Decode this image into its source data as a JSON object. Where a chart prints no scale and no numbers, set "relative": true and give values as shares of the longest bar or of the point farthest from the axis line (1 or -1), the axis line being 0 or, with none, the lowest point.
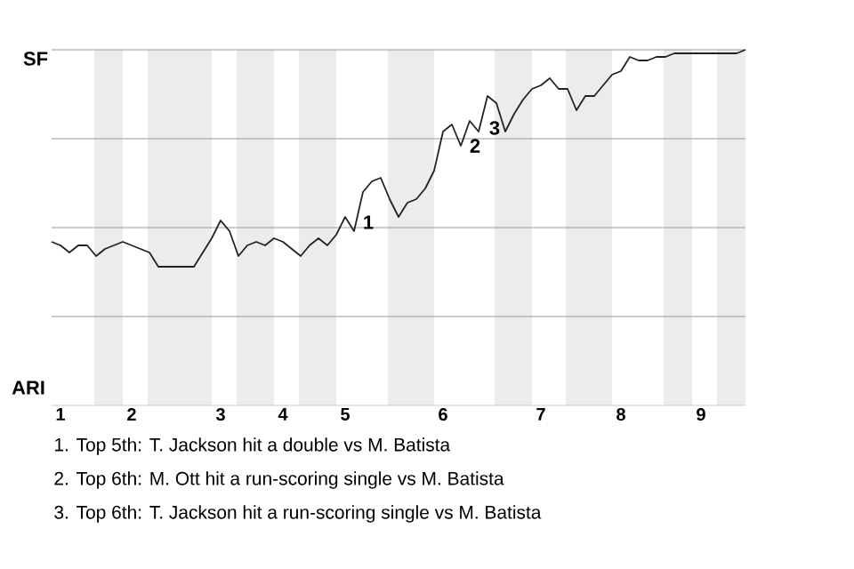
{
  "chart_data": {
    "type": "line",
    "relative": true,
    "categories": [
      null,
      "1",
      null,
      null,
      null,
      null,
      null,
      null,
      null,
      "2",
      null,
      null,
      null,
      null,
      null,
      null,
      null,
      null,
      null,
      "3",
      null,
      null,
      null,
      null,
      null,
      null,
      "4",
      null,
      null,
      null,
      null,
      null,
      null,
      "5",
      null,
      null,
      null,
      null,
      null,
      null,
      null,
      null,
      null,
      null,
      "6",
      null,
      null,
      null,
      null,
      null,
      null,
      null,
      null,
      null,
      null,
      "7",
      null,
      null,
      null,
      null,
      null,
      null,
      null,
      null,
      "8",
      null,
      null,
      null,
      null,
      null,
      null,
      null,
      null,
      "9",
      null,
      null,
      null,
      null,
      null
    ],
    "series": [
      {
        "color": "#222222",
        "values": [
          0.46,
          0.45,
          0.43,
          0.45,
          0.45,
          0.42,
          0.44,
          0.45,
          0.46,
          0.45,
          0.44,
          0.43,
          0.39,
          0.39,
          0.39,
          0.39,
          0.39,
          0.43,
          0.47,
          0.52,
          0.49,
          0.42,
          0.45,
          0.46,
          0.45,
          0.47,
          0.46,
          0.44,
          0.42,
          0.45,
          0.47,
          0.45,
          0.48,
          0.53,
          0.49,
          0.6,
          0.63,
          0.64,
          0.58,
          0.53,
          0.57,
          0.58,
          0.61,
          0.66,
          0.77,
          0.79,
          0.73,
          0.8,
          0.77,
          0.87,
          0.85,
          0.77,
          0.82,
          0.86,
          0.89,
          0.9,
          0.92,
          0.89,
          0.89,
          0.83,
          0.87,
          0.87,
          0.9,
          0.93,
          0.94,
          0.98,
          0.97,
          0.97,
          0.98,
          0.98,
          0.99,
          0.99,
          0.99,
          0.99,
          0.99,
          0.99,
          0.99,
          0.99,
          1
        ]
      }
    ],
    "marker": "none",
    "annotations": [
      "SF",
      "ARI",
      "1",
      "2",
      "3",
      "1. Top 5th: T. Jackson hit a double vs M. Batista",
      "2. Top 6th: M. Ott hit a run-scoring single vs M. Batista",
      "3. Top 6th: T. Jackson hit a run-scoring single vs M. Batista"
    ]
  }
}
